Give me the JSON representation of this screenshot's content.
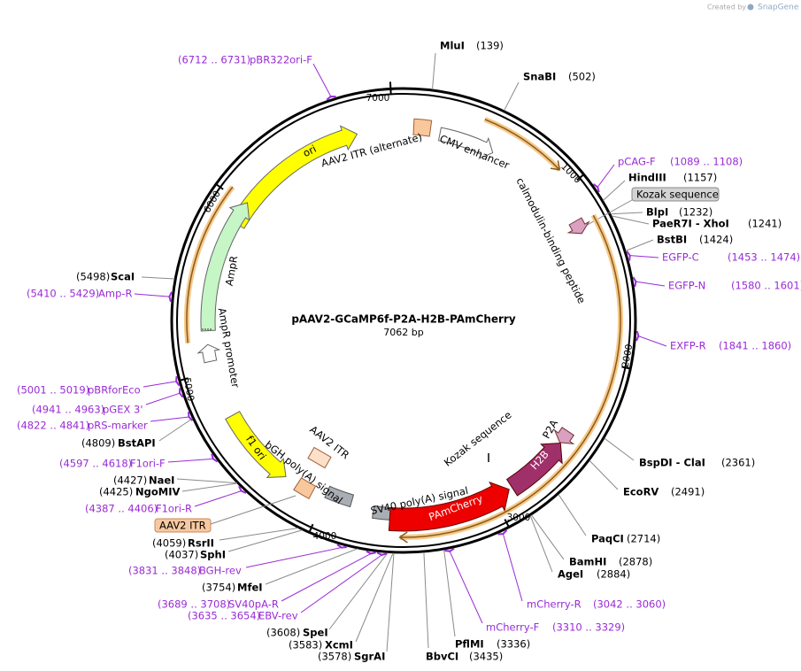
{
  "header": {
    "created_by": "Created by",
    "brand": "SnapGene"
  },
  "map": {
    "name": "pAAV2-GCaMP6f-P2A-H2B-PAmCherry",
    "size": "7062 bp",
    "ticks": [
      "7000",
      "1000",
      "2000",
      "3000",
      "4000",
      "5000",
      "6000"
    ],
    "sites": [
      {
        "name": "MluI",
        "position": "(139)"
      },
      {
        "name": "SnaBI",
        "position": "(502)"
      },
      {
        "name": "HindIII",
        "position": "(1157)"
      },
      {
        "name": "BlpI",
        "position": "(1232)"
      },
      {
        "name": "PaeR7I - XhoI",
        "position": "(1241)"
      },
      {
        "name": "BstBI",
        "position": "(1424)"
      },
      {
        "name": "BspDI - ClaI",
        "position": "(2361)"
      },
      {
        "name": "EcoRV",
        "position": "(2491)"
      },
      {
        "name": "PaqCI",
        "position": "(2714)"
      },
      {
        "name": "BamHI",
        "position": "(2878)"
      },
      {
        "name": "AgeI",
        "position": "(2884)"
      },
      {
        "name": "PflMI",
        "position": "(3336)"
      },
      {
        "name": "BbvCI",
        "position": "(3435)"
      },
      {
        "name": "SgrAI",
        "position": "(3578)"
      },
      {
        "name": "XcmI",
        "position": "(3583)"
      },
      {
        "name": "SpeI",
        "position": "(3608)"
      },
      {
        "name": "MfeI",
        "position": "(3754)"
      },
      {
        "name": "SphI",
        "position": "(4037)"
      },
      {
        "name": "RsrII",
        "position": "(4059)"
      },
      {
        "name": "NgoMIV",
        "position": "(4425)"
      },
      {
        "name": "NaeI",
        "position": "(4427)"
      },
      {
        "name": "BstAPI",
        "position": "(4809)"
      },
      {
        "name": "ScaI",
        "position": "(5498)"
      }
    ],
    "primers": [
      {
        "name": "pCAG-F",
        "range": "(1089 .. 1108)"
      },
      {
        "name": "EGFP-C",
        "range": "(1453 .. 1474)"
      },
      {
        "name": "EGFP-N",
        "range": "(1580 .. 1601)"
      },
      {
        "name": "EXFP-R",
        "range": "(1841 .. 1860)"
      },
      {
        "name": "mCherry-R",
        "range": "(3042 .. 3060)"
      },
      {
        "name": "mCherry-F",
        "range": "(3310 .. 3329)"
      },
      {
        "name": "EBV-rev",
        "range": "(3635 .. 3654)"
      },
      {
        "name": "SV40pA-R",
        "range": "(3689 .. 3708)"
      },
      {
        "name": "BGH-rev",
        "range": "(3831 .. 3848)"
      },
      {
        "name": "F1ori-R",
        "range": "(4387 .. 4406)"
      },
      {
        "name": "F1ori-F",
        "range": "(4597 .. 4618)"
      },
      {
        "name": "pRS-marker",
        "range": "(4822 .. 4841)"
      },
      {
        "name": "pGEX 3'",
        "range": "(4941 .. 4963)"
      },
      {
        "name": "pBRforEco",
        "range": "(5001 .. 5019)"
      },
      {
        "name": "Amp-R",
        "range": "(5410 .. 5429)"
      },
      {
        "name": "pBR322ori-F",
        "range": "(6712 .. 6731)"
      }
    ],
    "features": [
      "AAV2 ITR (alternate)",
      "CMV enhancer",
      "calmodulin-binding peptide",
      "ori",
      "AmpR",
      "AmpR promoter",
      "f1 ori",
      "AAV2 ITR",
      "bGH poly(A) signal",
      "SV40 poly(A) signal",
      "Kozak sequence",
      "P2A",
      "H2B",
      "PAmCherry"
    ],
    "callouts": [
      "Kozak sequence",
      "AAV2 ITR"
    ]
  }
}
